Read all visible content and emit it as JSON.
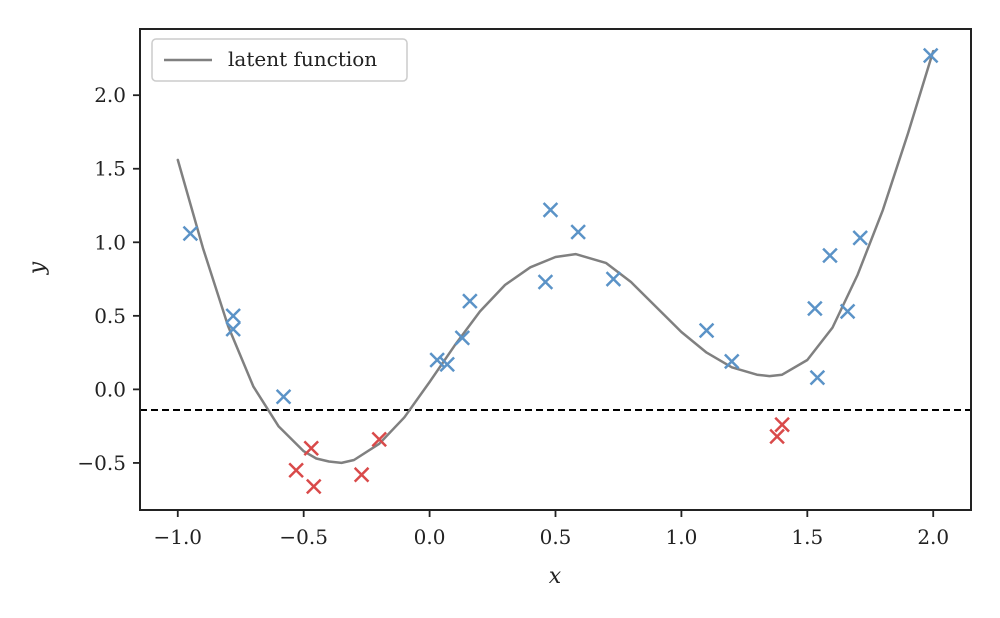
{
  "chart_data": {
    "type": "scatter",
    "xlabel": "x",
    "ylabel": "y",
    "xlim": [
      -1.15,
      2.15
    ],
    "ylim": [
      -0.82,
      2.45
    ],
    "xticks": [
      -1.0,
      -0.5,
      0.0,
      0.5,
      1.0,
      1.5,
      2.0
    ],
    "xtick_labels": [
      "−1.0",
      "−0.5",
      "0.0",
      "0.5",
      "1.0",
      "1.5",
      "2.0"
    ],
    "yticks": [
      -0.5,
      0.0,
      0.5,
      1.0,
      1.5,
      2.0
    ],
    "ytick_labels": [
      "−0.5",
      "0.0",
      "0.5",
      "1.0",
      "1.5",
      "2.0"
    ],
    "grid": false,
    "legend": {
      "position": "top-left",
      "entries": [
        "latent function"
      ]
    },
    "threshold": {
      "y": -0.14,
      "style": "dashed",
      "color": "#000000"
    },
    "series": [
      {
        "name": "latent function",
        "kind": "line",
        "color": "#808080",
        "x": [
          -1.0,
          -0.9,
          -0.8,
          -0.7,
          -0.6,
          -0.5,
          -0.45,
          -0.4,
          -0.35,
          -0.3,
          -0.2,
          -0.1,
          0.0,
          0.1,
          0.2,
          0.3,
          0.4,
          0.5,
          0.58,
          0.7,
          0.8,
          0.9,
          1.0,
          1.1,
          1.2,
          1.3,
          1.35,
          1.4,
          1.5,
          1.6,
          1.7,
          1.8,
          1.9,
          2.0
        ],
        "y": [
          1.56,
          0.96,
          0.43,
          0.02,
          -0.25,
          -0.42,
          -0.47,
          -0.49,
          -0.5,
          -0.48,
          -0.37,
          -0.19,
          0.05,
          0.3,
          0.53,
          0.71,
          0.83,
          0.9,
          0.92,
          0.86,
          0.73,
          0.56,
          0.39,
          0.25,
          0.15,
          0.1,
          0.09,
          0.1,
          0.2,
          0.42,
          0.78,
          1.22,
          1.74,
          2.3
        ]
      },
      {
        "kind": "scatter",
        "marker": "x",
        "color": "#5b93c7",
        "points": [
          [
            -0.95,
            1.06
          ],
          [
            -0.78,
            0.5
          ],
          [
            -0.78,
            0.41
          ],
          [
            -0.58,
            -0.05
          ],
          [
            0.03,
            0.2
          ],
          [
            0.07,
            0.17
          ],
          [
            0.13,
            0.35
          ],
          [
            0.16,
            0.6
          ],
          [
            0.46,
            0.73
          ],
          [
            0.48,
            1.22
          ],
          [
            0.59,
            1.07
          ],
          [
            0.73,
            0.75
          ],
          [
            1.1,
            0.4
          ],
          [
            1.2,
            0.19
          ],
          [
            1.53,
            0.55
          ],
          [
            1.54,
            0.08
          ],
          [
            1.59,
            0.91
          ],
          [
            1.66,
            0.53
          ],
          [
            1.71,
            1.03
          ],
          [
            1.99,
            2.27
          ]
        ]
      },
      {
        "kind": "scatter",
        "marker": "x",
        "color": "#d94a4a",
        "points": [
          [
            -0.53,
            -0.55
          ],
          [
            -0.47,
            -0.4
          ],
          [
            -0.46,
            -0.66
          ],
          [
            -0.27,
            -0.58
          ],
          [
            -0.2,
            -0.34
          ],
          [
            1.38,
            -0.32
          ],
          [
            1.4,
            -0.24
          ]
        ]
      }
    ]
  }
}
